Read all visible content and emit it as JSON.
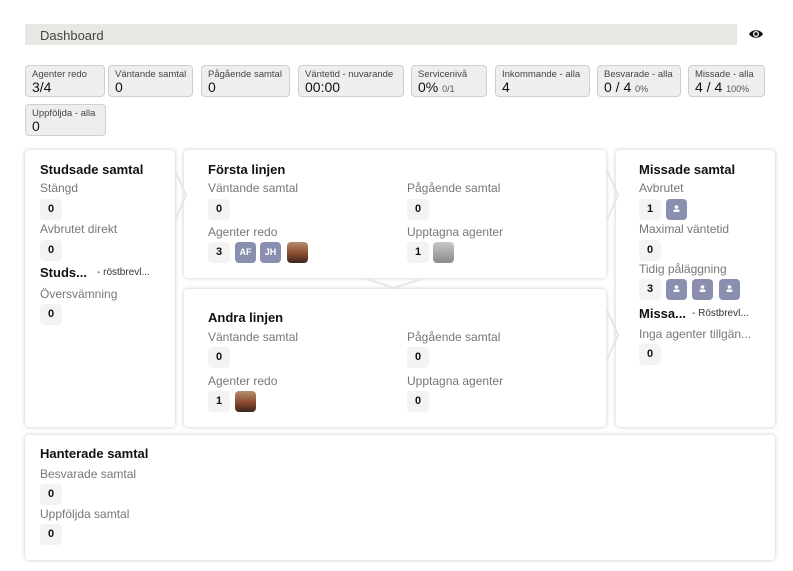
{
  "header": {
    "title": "Dashboard",
    "visibility_icon": "eye-icon"
  },
  "stats": [
    {
      "label": "Agenter redo",
      "value": "3/4",
      "sub": ""
    },
    {
      "label": "Väntande samtal",
      "value": "0",
      "sub": ""
    },
    {
      "label": "Pågående samtal",
      "value": "0",
      "sub": ""
    },
    {
      "label": "Väntetid - nuvarande",
      "value": "00:00",
      "sub": ""
    },
    {
      "label": "Servicenivå",
      "value": "0%",
      "sub": "0/1"
    },
    {
      "label": "Inkommande - alla",
      "value": "4",
      "sub": ""
    },
    {
      "label": "Besvarade - alla",
      "value": "0 / 4",
      "sub": "0%"
    },
    {
      "label": "Missade - alla",
      "value": "4 / 4",
      "sub": "100%"
    },
    {
      "label": "Uppföljda - alla",
      "value": "0",
      "sub": ""
    }
  ],
  "bounced": {
    "title": "Studsade samtal",
    "closed_label": "Stängd",
    "closed": "0",
    "abandoned_label": "Avbrutet direkt",
    "abandoned": "0",
    "voicemail_title": "Studs...",
    "voicemail_sub": "- röstbrevl...",
    "overflow_label": "Översvämning",
    "overflow": "0"
  },
  "first_line": {
    "title": "Första linjen",
    "waiting_label": "Väntande samtal",
    "waiting": "0",
    "ongoing_label": "Pågående samtal",
    "ongoing": "0",
    "ready_label": "Agenter redo",
    "ready": "3",
    "ready_agents": [
      "AF",
      "JH"
    ],
    "busy_label": "Upptagna agenter",
    "busy": "1"
  },
  "second_line": {
    "title": "Andra linjen",
    "waiting_label": "Väntande samtal",
    "waiting": "0",
    "ongoing_label": "Pågående samtal",
    "ongoing": "0",
    "ready_label": "Agenter redo",
    "ready": "1",
    "busy_label": "Upptagna agenter",
    "busy": "0"
  },
  "missed": {
    "title": "Missade samtal",
    "abandoned_label": "Avbrutet",
    "abandoned": "1",
    "maxwait_label": "Maximal väntetid",
    "maxwait": "0",
    "early_label": "Tidig påläggning",
    "early": "3",
    "voicemail_title": "Missa...",
    "voicemail_sub": "- Röstbrevl...",
    "noagents_label": "Inga agenter tillgän...",
    "noagents": "0"
  },
  "handled": {
    "title": "Hanterade samtal",
    "answered_label": "Besvarade samtal",
    "answered": "0",
    "followed_label": "Uppföljda samtal",
    "followed": "0"
  },
  "colors": {
    "avatar": "#8a8fb0",
    "header_bg": "#e9e7e4"
  }
}
